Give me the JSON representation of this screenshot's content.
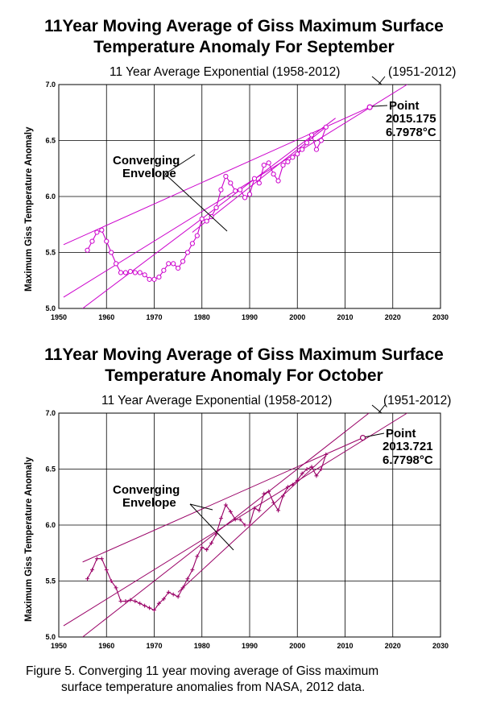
{
  "figure_caption": {
    "line1": "Figure  5.  Converging 11 year moving average of Giss maximum",
    "line2": "surface temperature anomalies from NASA, 2012 data."
  },
  "chart_data": [
    {
      "type": "line",
      "title_line1": "11Year Moving Average of Giss Maximum  Surface",
      "title_line2": "Temperature Anomaly For September",
      "subtitle_left": "11 Year Average Exponential (1958-2012)",
      "subtitle_right": "(1951-2012)",
      "ylabel": "Maximum Giss Temperature Anomaly",
      "xlabel": "",
      "xlim": [
        1950,
        2030
      ],
      "ylim": [
        5.0,
        7.0
      ],
      "x_ticks": [
        "1950",
        "1960",
        "1970",
        "1980",
        "1990",
        "2000",
        "2010",
        "2020",
        "2030"
      ],
      "y_ticks": [
        "5.0",
        "5.5",
        "6.0",
        "6.5",
        "7.0"
      ],
      "grid": true,
      "color": "#cc00cc",
      "marker": "circle",
      "series": [
        {
          "name": "11 year moving average",
          "x": [
            1956,
            1957,
            1958,
            1959,
            1960,
            1961,
            1962,
            1963,
            1964,
            1965,
            1966,
            1967,
            1968,
            1969,
            1970,
            1971,
            1972,
            1973,
            1974,
            1975,
            1976,
            1977,
            1978,
            1979,
            1980,
            1981,
            1982,
            1983,
            1984,
            1985,
            1986,
            1987,
            1988,
            1989,
            1990,
            1991,
            1992,
            1993,
            1994,
            1995,
            1996,
            1997,
            1998,
            1999,
            2000,
            2001,
            2002,
            2003,
            2004,
            2005,
            2006
          ],
          "y": [
            5.52,
            5.6,
            5.68,
            5.7,
            5.6,
            5.5,
            5.4,
            5.32,
            5.32,
            5.33,
            5.32,
            5.32,
            5.3,
            5.26,
            5.26,
            5.28,
            5.34,
            5.4,
            5.4,
            5.36,
            5.42,
            5.5,
            5.58,
            5.65,
            5.8,
            5.78,
            5.82,
            5.9,
            6.06,
            6.18,
            6.12,
            6.05,
            6.06,
            5.99,
            6.02,
            6.16,
            6.12,
            6.28,
            6.3,
            6.2,
            6.14,
            6.28,
            6.31,
            6.35,
            6.38,
            6.42,
            6.48,
            6.55,
            6.42,
            6.5,
            6.62
          ]
        },
        {
          "name": "Converging envelope upper",
          "x": [
            1951,
            2015.175
          ],
          "y": [
            5.57,
            6.7978
          ]
        },
        {
          "name": "11 Year Average Exponential (1958-2012)",
          "x": [
            1951,
            2023
          ],
          "y": [
            5.1,
            7.0
          ]
        },
        {
          "name": "(1951-2012)",
          "x": [
            1955,
            2008
          ],
          "y": [
            5.0,
            6.7
          ]
        },
        {
          "name": "Converging envelope lower",
          "x": [
            1978,
            2006
          ],
          "y": [
            5.68,
            6.62
          ]
        }
      ],
      "point": {
        "x": 2015.175,
        "y": 6.7978,
        "label": "Point",
        "value1": "2015.175",
        "value2": "6.7978",
        "unit": "°C"
      },
      "annotation": {
        "line1": "Converging",
        "line2": "Envelope"
      }
    },
    {
      "type": "line",
      "title_line1": "11Year Moving Average of Giss Maximum  Surface",
      "title_line2": "Temperature Anomaly For October",
      "subtitle_left": "11 Year Average Exponential (1958-2012)",
      "subtitle_right": "(1951-2012)",
      "ylabel": "Maximum Giss Temperature Anomaly",
      "xlabel": "",
      "xlim": [
        1950,
        2030
      ],
      "ylim": [
        5.0,
        7.0
      ],
      "x_ticks": [
        "1950",
        "1960",
        "1970",
        "1980",
        "1990",
        "2000",
        "2010",
        "2020",
        "2030"
      ],
      "y_ticks": [
        "5.0",
        "5.5",
        "6.0",
        "6.5",
        "7.0"
      ],
      "grid": true,
      "color": "#990066",
      "marker": "plus",
      "series": [
        {
          "name": "11 year moving average",
          "x": [
            1956,
            1957,
            1958,
            1959,
            1960,
            1961,
            1962,
            1963,
            1964,
            1965,
            1966,
            1967,
            1968,
            1969,
            1970,
            1971,
            1972,
            1973,
            1974,
            1975,
            1976,
            1977,
            1978,
            1979,
            1980,
            1981,
            1982,
            1983,
            1984,
            1985,
            1986,
            1987,
            1988,
            1989,
            1990,
            1991,
            1992,
            1993,
            1994,
            1995,
            1996,
            1997,
            1998,
            1999,
            2000,
            2001,
            2002,
            2003,
            2004,
            2005,
            2006
          ],
          "y": [
            5.52,
            5.6,
            5.7,
            5.7,
            5.6,
            5.5,
            5.44,
            5.32,
            5.32,
            5.33,
            5.32,
            5.3,
            5.28,
            5.26,
            5.24,
            5.3,
            5.34,
            5.4,
            5.38,
            5.36,
            5.44,
            5.52,
            5.6,
            5.72,
            5.8,
            5.78,
            5.84,
            5.92,
            6.06,
            6.18,
            6.12,
            6.05,
            6.05,
            6.0,
            6.0,
            6.15,
            6.13,
            6.28,
            6.3,
            6.2,
            6.13,
            6.26,
            6.34,
            6.36,
            6.4,
            6.46,
            6.5,
            6.52,
            6.44,
            6.5,
            6.63
          ]
        },
        {
          "name": "Converging envelope upper",
          "x": [
            1955,
            2013.721
          ],
          "y": [
            5.67,
            6.7798
          ]
        },
        {
          "name": "11 Year Average Exponential (1958-2012)",
          "x": [
            1951,
            2023
          ],
          "y": [
            5.1,
            7.0
          ]
        },
        {
          "name": "(1951-2012)",
          "x": [
            1955,
            2015
          ],
          "y": [
            5.0,
            7.0
          ]
        },
        {
          "name": "Converging envelope lower",
          "x": [
            1975,
            2006
          ],
          "y": [
            5.4,
            6.62
          ]
        }
      ],
      "point": {
        "x": 2013.721,
        "y": 6.7798,
        "label": "Point",
        "value1": "2013.721",
        "value2": "6.7798",
        "unit": "°C"
      },
      "annotation": {
        "line1": "Converging",
        "line2": "Envelope"
      }
    }
  ]
}
